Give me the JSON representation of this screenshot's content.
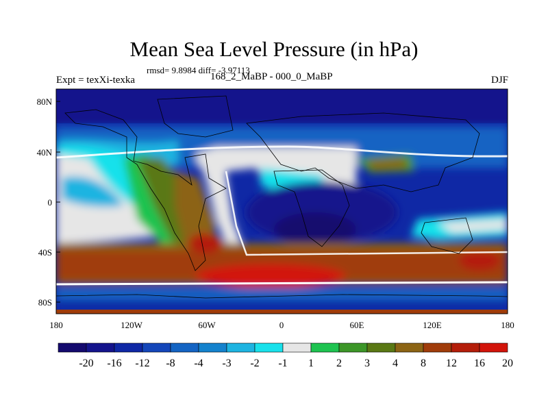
{
  "map": {
    "title": "Mean Sea Level Pressure (in hPa)",
    "stats": "rmsd= 9.8984 diff= -3.97113",
    "left_label": "Expt = texXi-texka",
    "center_label": "168_2_MaBP - 000_0_MaBP",
    "right_label": "DJF",
    "lat_ticks": [
      "80N",
      "40N",
      "0",
      "40S",
      "80S"
    ],
    "lon_ticks": [
      "180",
      "120W",
      "60W",
      "0",
      "60E",
      "120E",
      "180"
    ]
  },
  "colorbar": {
    "labels": [
      "-20",
      "-16",
      "-12",
      "-8",
      "-4",
      "-3",
      "-2",
      "-1",
      "1",
      "2",
      "3",
      "4",
      "8",
      "12",
      "16",
      "20"
    ],
    "colors": [
      "#140a6e",
      "#14148c",
      "#0f28a5",
      "#1446b9",
      "#1464c3",
      "#1482cd",
      "#1eb4e1",
      "#19e1eb",
      "#e6e6e6",
      "#1ec350",
      "#3c9628",
      "#5a7814",
      "#8c6414",
      "#a03c0a",
      "#b41e0a",
      "#d2140a"
    ]
  }
}
